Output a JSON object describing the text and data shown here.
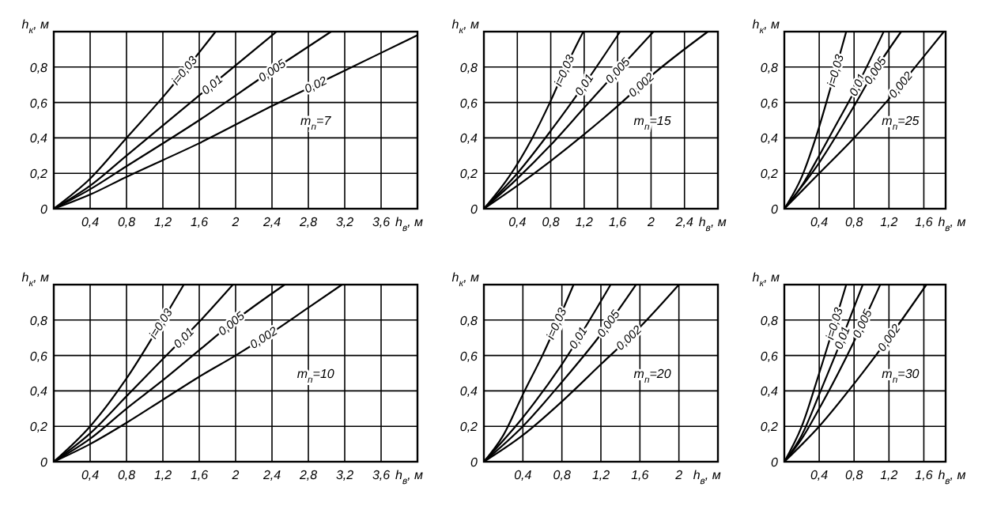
{
  "chart_data": [
    {
      "type": "line",
      "xlabel": "h$_{в}$, м",
      "ylabel": "h$_{к}$, м",
      "xlim": [
        0,
        4.0
      ],
      "ylim": [
        0,
        1.0
      ],
      "xticks": [
        {
          "value": 0.4,
          "label": "0,4"
        },
        {
          "value": 0.8,
          "label": "0,8"
        },
        {
          "value": 1.2,
          "label": "1,2"
        },
        {
          "value": 1.6,
          "label": "1,6"
        },
        {
          "value": 2,
          "label": "2"
        },
        {
          "value": 2.4,
          "label": "2,4"
        },
        {
          "value": 2.8,
          "label": "2,8"
        },
        {
          "value": 3.2,
          "label": "3,2"
        },
        {
          "value": 3.6,
          "label": "3,6"
        }
      ],
      "yticks": [
        {
          "value": 0,
          "label": "0"
        },
        {
          "value": 0.2,
          "label": "0,2"
        },
        {
          "value": 0.4,
          "label": "0,4"
        },
        {
          "value": 0.6,
          "label": "0,6"
        },
        {
          "value": 0.8,
          "label": "0,8"
        }
      ],
      "grid": true,
      "annotations": [
        "m$_{п}$=7"
      ],
      "series": [
        {
          "name": "i=0,03",
          "color": "#000000",
          "x": [
            0,
            0.4,
            0.8,
            1.2,
            1.78
          ],
          "values": [
            0,
            0.17,
            0.4,
            0.63,
            1.0
          ]
        },
        {
          "name": "0,01",
          "color": "#000000",
          "x": [
            0,
            0.4,
            0.8,
            1.6,
            2.45
          ],
          "values": [
            0,
            0.13,
            0.3,
            0.64,
            1.0
          ]
        },
        {
          "name": "0,005",
          "color": "#000000",
          "x": [
            0,
            0.4,
            0.8,
            1.6,
            2.4,
            3.05
          ],
          "values": [
            0,
            0.11,
            0.24,
            0.5,
            0.78,
            1.0
          ]
        },
        {
          "name": "0,02",
          "color": "#000000",
          "x": [
            0,
            0.4,
            0.8,
            1.6,
            2.4,
            3.2,
            4.0
          ],
          "values": [
            0,
            0.08,
            0.18,
            0.37,
            0.58,
            0.78,
            0.98
          ]
        }
      ]
    },
    {
      "type": "line",
      "xlabel": "h$_{в}$, м",
      "ylabel": "h$_{к}$, м",
      "xlim": [
        0,
        2.8
      ],
      "ylim": [
        0,
        1.0
      ],
      "xticks": [
        {
          "value": 0.4,
          "label": "0,4"
        },
        {
          "value": 0.8,
          "label": "0,8"
        },
        {
          "value": 1.2,
          "label": "1,2"
        },
        {
          "value": 1.6,
          "label": "1,6"
        },
        {
          "value": 2,
          "label": "2"
        },
        {
          "value": 2.4,
          "label": "2,4"
        }
      ],
      "yticks": [
        {
          "value": 0,
          "label": "0"
        },
        {
          "value": 0.2,
          "label": "0,2"
        },
        {
          "value": 0.4,
          "label": "0,4"
        },
        {
          "value": 0.6,
          "label": "0,6"
        },
        {
          "value": 0.8,
          "label": "0,8"
        }
      ],
      "grid": true,
      "annotations": [
        "m$_{п}$=15"
      ],
      "series": [
        {
          "name": "i=0,03",
          "color": "#000000",
          "x": [
            0,
            0.3,
            0.58,
            0.79,
            0.98,
            1.19
          ],
          "values": [
            0,
            0.18,
            0.4,
            0.6,
            0.8,
            1.0
          ]
        },
        {
          "name": "0,01",
          "color": "#000000",
          "x": [
            0,
            0.4,
            0.8,
            1.2,
            1.63
          ],
          "values": [
            0,
            0.2,
            0.44,
            0.7,
            1.0
          ]
        },
        {
          "name": "0,005",
          "color": "#000000",
          "x": [
            0,
            0.4,
            0.8,
            1.2,
            1.6,
            2.03
          ],
          "values": [
            0,
            0.17,
            0.36,
            0.57,
            0.78,
            1.0
          ]
        },
        {
          "name": "0,002",
          "color": "#000000",
          "x": [
            0,
            0.4,
            0.8,
            1.2,
            1.6,
            2.0,
            2.68
          ],
          "values": [
            0,
            0.13,
            0.27,
            0.42,
            0.58,
            0.75,
            1.0
          ]
        }
      ]
    },
    {
      "type": "line",
      "xlabel": "h$_{в}$, м",
      "ylabel": "h$_{к}$, м",
      "xlim": [
        0,
        1.85
      ],
      "ylim": [
        0,
        1.0
      ],
      "xticks": [
        {
          "value": 0.4,
          "label": "0,4"
        },
        {
          "value": 0.8,
          "label": "0,8"
        },
        {
          "value": 1.2,
          "label": "1,2"
        },
        {
          "value": 1.6,
          "label": "1,6"
        }
      ],
      "yticks": [
        {
          "value": 0,
          "label": "0"
        },
        {
          "value": 0.2,
          "label": "0,2"
        },
        {
          "value": 0.4,
          "label": "0,4"
        },
        {
          "value": 0.6,
          "label": "0,6"
        },
        {
          "value": 0.8,
          "label": "0,8"
        }
      ],
      "grid": true,
      "annotations": [
        "m$_{п}$=25"
      ],
      "series": [
        {
          "name": "i=0,03",
          "color": "#000000",
          "x": [
            0,
            0.2,
            0.36,
            0.54,
            0.71
          ],
          "values": [
            0,
            0.18,
            0.4,
            0.7,
            1.0
          ]
        },
        {
          "name": "0,01",
          "color": "#000000",
          "x": [
            0,
            0.2,
            0.4,
            0.6,
            0.8,
            1.14
          ],
          "values": [
            0,
            0.13,
            0.3,
            0.48,
            0.66,
            1.0
          ]
        },
        {
          "name": "0,005",
          "color": "#000000",
          "x": [
            0,
            0.4,
            0.8,
            1.0,
            1.34
          ],
          "values": [
            0,
            0.26,
            0.58,
            0.75,
            1.0
          ]
        },
        {
          "name": "0,002",
          "color": "#000000",
          "x": [
            0,
            0.4,
            0.8,
            1.2,
            1.6,
            1.83
          ],
          "values": [
            0,
            0.2,
            0.4,
            0.62,
            0.86,
            1.0
          ]
        }
      ]
    },
    {
      "type": "line",
      "xlabel": "h$_{в}$, м",
      "ylabel": "h$_{к}$, м",
      "xlim": [
        0,
        4.0
      ],
      "ylim": [
        0,
        1.0
      ],
      "xticks": [
        {
          "value": 0.4,
          "label": "0,4"
        },
        {
          "value": 0.8,
          "label": "0,8"
        },
        {
          "value": 1.2,
          "label": "1,2"
        },
        {
          "value": 1.6,
          "label": "1,6"
        },
        {
          "value": 2,
          "label": "2"
        },
        {
          "value": 2.4,
          "label": "2,4"
        },
        {
          "value": 2.8,
          "label": "2,8"
        },
        {
          "value": 3.2,
          "label": "3,2"
        },
        {
          "value": 3.6,
          "label": "3,6"
        }
      ],
      "yticks": [
        {
          "value": 0,
          "label": "0"
        },
        {
          "value": 0.2,
          "label": "0,2"
        },
        {
          "value": 0.4,
          "label": "0,4"
        },
        {
          "value": 0.6,
          "label": "0,6"
        },
        {
          "value": 0.8,
          "label": "0,8"
        }
      ],
      "grid": true,
      "annotations": [
        "m$_{п}$=10"
      ],
      "series": [
        {
          "name": "i=0,03",
          "color": "#000000",
          "x": [
            0,
            0.4,
            0.8,
            1.2,
            1.43
          ],
          "values": [
            0,
            0.2,
            0.47,
            0.8,
            1.0
          ]
        },
        {
          "name": "0,01",
          "color": "#000000",
          "x": [
            0,
            0.4,
            0.8,
            1.2,
            1.6,
            1.97
          ],
          "values": [
            0,
            0.16,
            0.37,
            0.58,
            0.79,
            1.0
          ]
        },
        {
          "name": "0,005",
          "color": "#000000",
          "x": [
            0,
            0.4,
            0.8,
            1.2,
            1.6,
            2.0,
            2.54
          ],
          "values": [
            0,
            0.13,
            0.3,
            0.46,
            0.63,
            0.8,
            1.0
          ]
        },
        {
          "name": "0,002",
          "color": "#000000",
          "x": [
            0,
            0.4,
            0.8,
            1.2,
            1.6,
            2.0,
            2.4,
            2.8,
            3.17
          ],
          "values": [
            0,
            0.1,
            0.22,
            0.35,
            0.48,
            0.6,
            0.73,
            0.87,
            1.0
          ]
        }
      ]
    },
    {
      "type": "line",
      "xlabel": "h$_{в}$, м",
      "ylabel": "h$_{к}$, м",
      "xlim": [
        0,
        2.4
      ],
      "ylim": [
        0,
        1.0
      ],
      "xticks": [
        {
          "value": 0.4,
          "label": "0,4"
        },
        {
          "value": 0.8,
          "label": "0,8"
        },
        {
          "value": 1.2,
          "label": "1,2"
        },
        {
          "value": 1.6,
          "label": "1,6"
        },
        {
          "value": 2,
          "label": "2"
        }
      ],
      "yticks": [
        {
          "value": 0,
          "label": "0"
        },
        {
          "value": 0.2,
          "label": "0,2"
        },
        {
          "value": 0.4,
          "label": "0,4"
        },
        {
          "value": 0.6,
          "label": "0,6"
        },
        {
          "value": 0.8,
          "label": "0,8"
        }
      ],
      "grid": true,
      "annotations": [
        "m$_{п}$=20"
      ],
      "series": [
        {
          "name": "i=0,03",
          "color": "#000000",
          "x": [
            0,
            0.2,
            0.4,
            0.6,
            0.92
          ],
          "values": [
            0,
            0.15,
            0.38,
            0.6,
            1.0
          ]
        },
        {
          "name": "0,01",
          "color": "#000000",
          "x": [
            0,
            0.4,
            0.8,
            1.3
          ],
          "values": [
            0,
            0.25,
            0.55,
            1.0
          ]
        },
        {
          "name": "0,005",
          "color": "#000000",
          "x": [
            0,
            0.4,
            0.8,
            1.2,
            1.56
          ],
          "values": [
            0,
            0.2,
            0.45,
            0.72,
            1.0
          ]
        },
        {
          "name": "0,002",
          "color": "#000000",
          "x": [
            0,
            0.4,
            0.8,
            1.2,
            1.6,
            2.0
          ],
          "values": [
            0,
            0.15,
            0.34,
            0.55,
            0.76,
            1.0
          ]
        }
      ]
    },
    {
      "type": "line",
      "xlabel": "h$_{в}$, м",
      "ylabel": "h$_{к}$, м",
      "xlim": [
        0,
        1.85
      ],
      "ylim": [
        0,
        1.0
      ],
      "xticks": [
        {
          "value": 0.4,
          "label": "0,4"
        },
        {
          "value": 0.8,
          "label": "0,8"
        },
        {
          "value": 1.2,
          "label": "1,2"
        },
        {
          "value": 1.6,
          "label": "1,6"
        }
      ],
      "yticks": [
        {
          "value": 0,
          "label": "0"
        },
        {
          "value": 0.2,
          "label": "0,2"
        },
        {
          "value": 0.4,
          "label": "0,4"
        },
        {
          "value": 0.6,
          "label": "0,6"
        },
        {
          "value": 0.8,
          "label": "0,8"
        }
      ],
      "grid": true,
      "annotations": [
        "m$_{п}$=30"
      ],
      "series": [
        {
          "name": "i=0,03",
          "color": "#000000",
          "x": [
            0,
            0.2,
            0.4,
            0.71
          ],
          "values": [
            0,
            0.2,
            0.5,
            1.0
          ]
        },
        {
          "name": "0,01",
          "color": "#000000",
          "x": [
            0,
            0.2,
            0.4,
            0.6,
            0.9
          ],
          "values": [
            0,
            0.15,
            0.38,
            0.62,
            1.0
          ]
        },
        {
          "name": "0,005",
          "color": "#000000",
          "x": [
            0,
            0.2,
            0.4,
            0.8,
            1.1
          ],
          "values": [
            0,
            0.13,
            0.3,
            0.68,
            1.0
          ]
        },
        {
          "name": "0,002",
          "color": "#000000",
          "x": [
            0,
            0.4,
            0.8,
            1.2,
            1.63
          ],
          "values": [
            0,
            0.2,
            0.44,
            0.7,
            1.0
          ]
        }
      ]
    }
  ]
}
